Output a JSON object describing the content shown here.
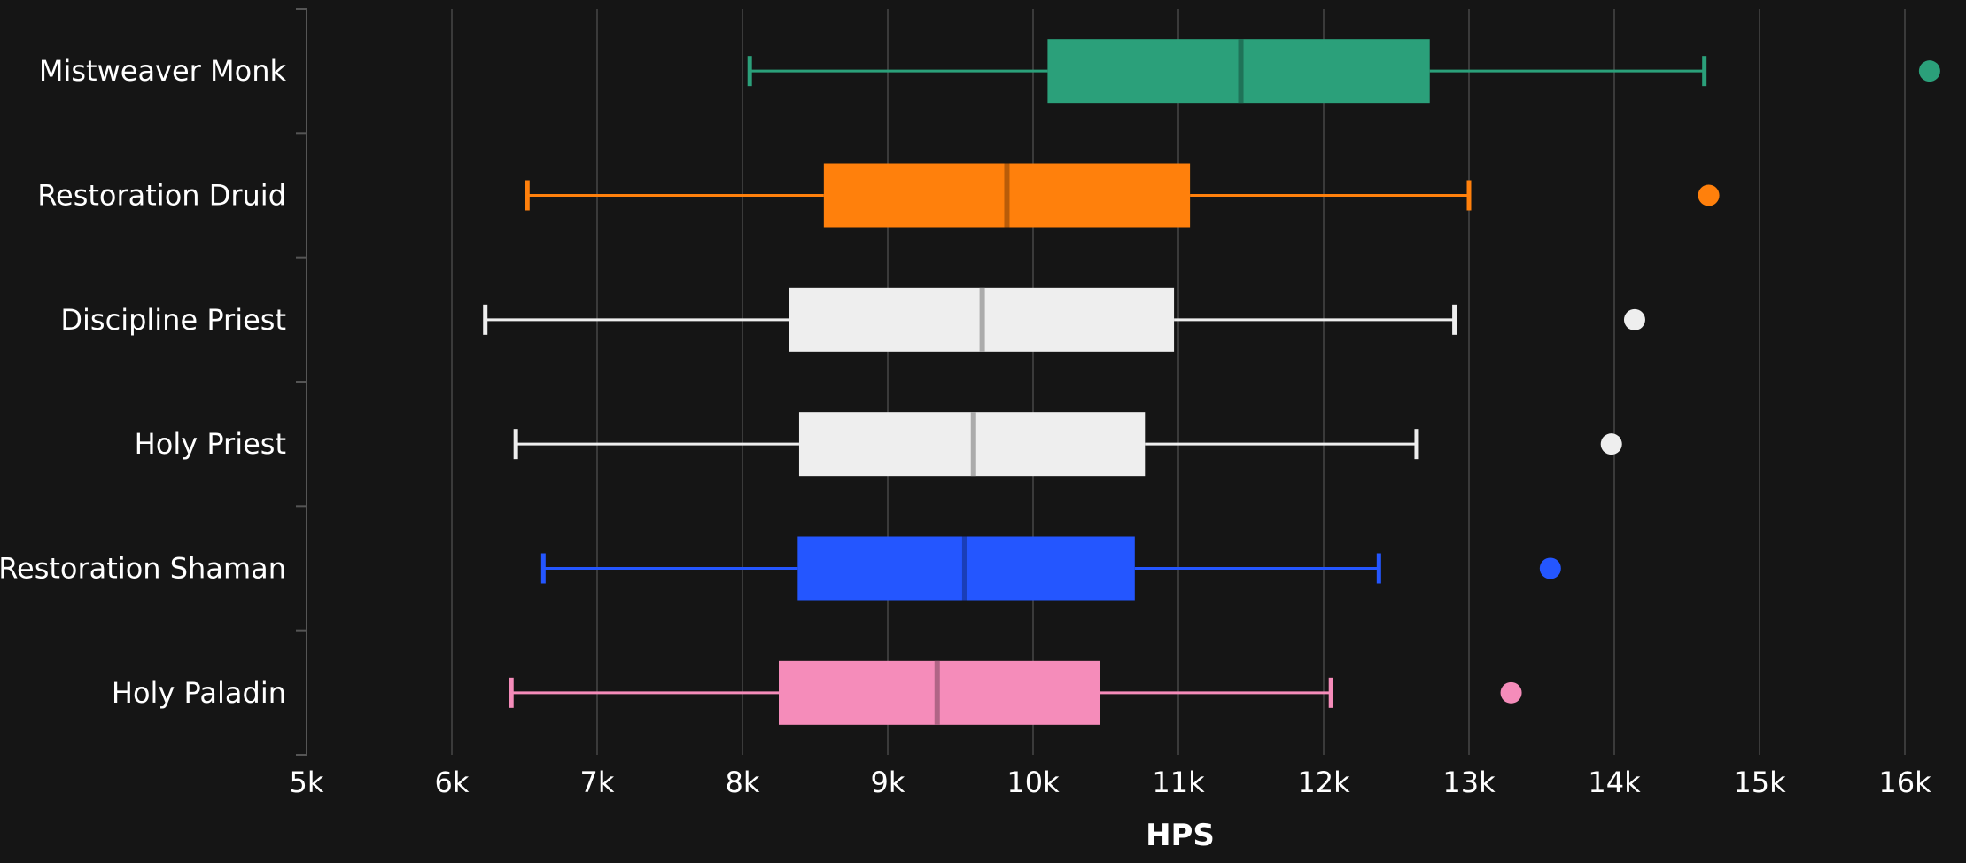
{
  "chart_data": {
    "type": "boxplot",
    "orientation": "horizontal",
    "title": "",
    "xlabel": "HPS",
    "ylabel": "",
    "xlim": [
      5000,
      16000
    ],
    "x_ticks": [
      5000,
      6000,
      7000,
      8000,
      9000,
      10000,
      11000,
      12000,
      13000,
      14000,
      15000,
      16000
    ],
    "x_tick_labels": [
      "5k",
      "6k",
      "7k",
      "8k",
      "9k",
      "10k",
      "11k",
      "12k",
      "13k",
      "14k",
      "15k",
      "16k"
    ],
    "grid": "vertical",
    "legend": "none",
    "series": [
      {
        "name": "Mistweaver Monk",
        "color": "#2ba07a",
        "whisker_low": 8050,
        "q1": 10100,
        "median": 11430,
        "q3": 12730,
        "whisker_high": 14620,
        "outliers": [
          16170
        ]
      },
      {
        "name": "Restoration Druid",
        "color": "#ff800c",
        "whisker_low": 6520,
        "q1": 8560,
        "median": 9820,
        "q3": 11080,
        "whisker_high": 13000,
        "outliers": [
          14650
        ]
      },
      {
        "name": "Discipline Priest",
        "color": "#eeeeee",
        "whisker_low": 6230,
        "q1": 8320,
        "median": 9650,
        "q3": 10970,
        "whisker_high": 12900,
        "outliers": [
          14140
        ]
      },
      {
        "name": "Holy Priest",
        "color": "#eeeeee",
        "whisker_low": 6440,
        "q1": 8390,
        "median": 9590,
        "q3": 10770,
        "whisker_high": 12640,
        "outliers": [
          13980
        ]
      },
      {
        "name": "Restoration Shaman",
        "color": "#2456ff",
        "whisker_low": 6630,
        "q1": 8380,
        "median": 9530,
        "q3": 10700,
        "whisker_high": 12380,
        "outliers": [
          13560
        ]
      },
      {
        "name": "Holy Paladin",
        "color": "#f58cba",
        "whisker_low": 6410,
        "q1": 8250,
        "median": 9340,
        "q3": 10460,
        "whisker_high": 12050,
        "outliers": [
          13290
        ]
      }
    ]
  }
}
